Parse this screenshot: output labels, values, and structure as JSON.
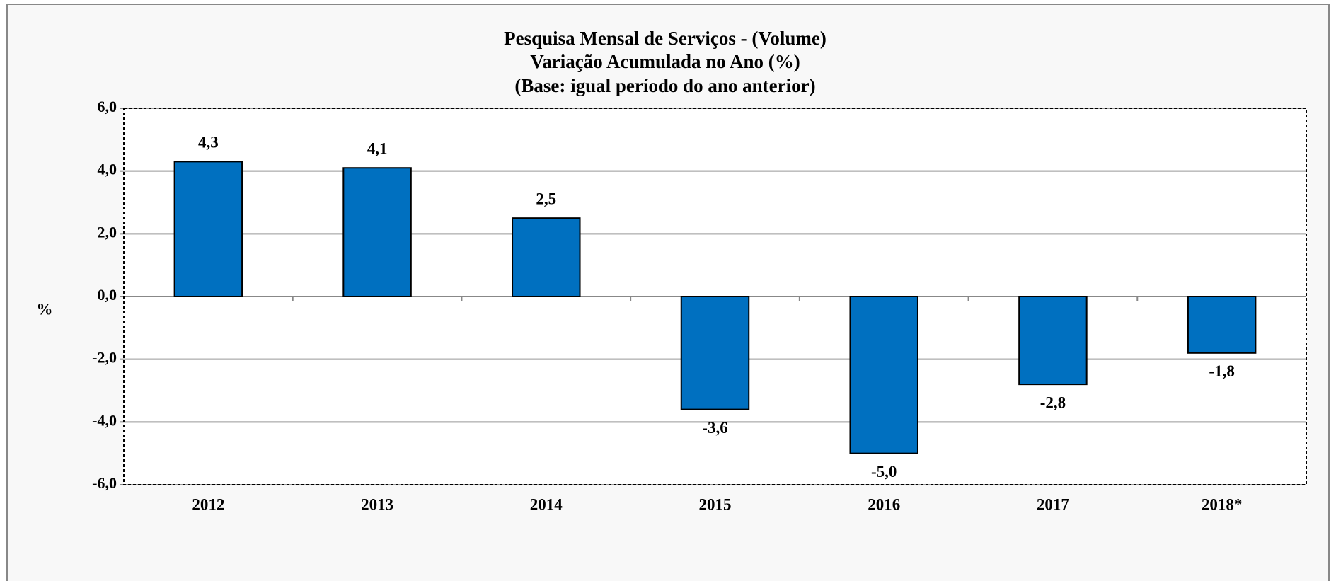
{
  "chart_data": {
    "type": "bar",
    "title": [
      "Pesquisa Mensal de Serviços - (Volume)",
      "Variação Acumulada no Ano (%)",
      "(Base: igual período  do ano anterior)"
    ],
    "y_label": "%",
    "categories": [
      "2012",
      "2013",
      "2014",
      "2015",
      "2016",
      "2017",
      "2018*"
    ],
    "values": [
      4.3,
      4.1,
      2.5,
      -3.6,
      -5.0,
      -2.8,
      -1.8
    ],
    "value_labels": [
      "4,3",
      "4,1",
      "2,5",
      "-3,6",
      "-5,0",
      "-2,8",
      "-1,8"
    ],
    "color": "#0070c0",
    "ylim": [
      -6,
      6
    ],
    "yticks": [
      {
        "value": -6,
        "label": "-6,0"
      },
      {
        "value": -4,
        "label": "-4,0"
      },
      {
        "value": -2,
        "label": "-2,0"
      },
      {
        "value": 0,
        "label": "0,0"
      },
      {
        "value": 2,
        "label": "2,0"
      },
      {
        "value": 4,
        "label": "4,0"
      },
      {
        "value": 6,
        "label": "6,0"
      }
    ],
    "grid": true
  }
}
